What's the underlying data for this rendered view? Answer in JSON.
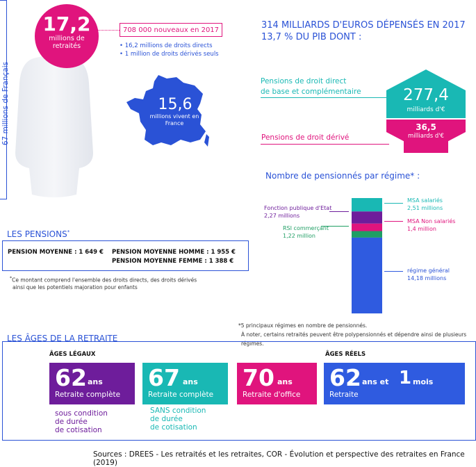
{
  "population": {
    "label": "67 millions de Français"
  },
  "retirees": {
    "number": "17,2",
    "label": "millions de retraités",
    "new_box": "708 000 nouveaux en 2017",
    "bullets": [
      "• 16,2 millions de droits directs",
      "• 1 million de droits dérivés seuls"
    ]
  },
  "france": {
    "number": "15,6",
    "label": "millions vivent en France"
  },
  "spending": {
    "title_line1": "314 MILLIARDS D'EUROS DÉPENSÉS EN 2017",
    "title_line2": "13,7 % DU PIB DONT :",
    "direct_label_line1": "Pensions de droit direct",
    "direct_label_line2": "de base et complémentaire",
    "direct_value": "277,4",
    "direct_unit": "milliards d'€",
    "derived_label": "Pensions de droit dérivé",
    "derived_value": "36,5",
    "derived_unit": "milliards d'€"
  },
  "regimes": {
    "title": "Nombre de pensionnés par régime* :",
    "items": [
      {
        "name": "MSA salariés",
        "value": "2,51 millions",
        "color": "#19b8b4"
      },
      {
        "name": "Fonction publique d'Etat",
        "value": "2,27 millions",
        "color": "#6e1d9b"
      },
      {
        "name": "MSA Non salariés",
        "value": "1,4 million",
        "color": "#e0147d"
      },
      {
        "name": "RSI commerçant",
        "value": "1,22 million",
        "color": "#1f9e64"
      },
      {
        "name": "régime général",
        "value": "14,18 millions",
        "color": "#2f5be0"
      }
    ],
    "stack_values": [
      2.51,
      2.27,
      1.4,
      1.22,
      14.18
    ],
    "note_line1": "*5 principaux régimes en nombre de pensionnés.",
    "note_line2": "À noter, certains retraités peuvent être polypensionnés et dépendre ainsi de plusieurs régimes."
  },
  "pensions": {
    "title": "LES PENSIONS",
    "title_mark": "*",
    "avg": "PENSION MOYENNE : 1 649 €",
    "avg_men": "PENSION MOYENNE HOMME : 1 955 €",
    "avg_women": "PENSION MOYENNE FEMME : 1 388 €",
    "note_mark": "*",
    "note_line1": "Ce montant comprend l'ensemble des droits directs, des droits dérivés",
    "note_line2": "ainsi que les potentiels majoration pour enfants"
  },
  "ages": {
    "title": "LES ÂGES DE LA RETRAITE",
    "legal_head": "ÂGES LÉGAUX",
    "real_head": "ÂGES RÉELS",
    "cards": [
      {
        "num": "62",
        "ans": "ans",
        "caption": "Retraite complète",
        "sub": [
          "sous condition",
          "de durée",
          "de cotisation"
        ],
        "color": "#6e1d9b"
      },
      {
        "num": "67",
        "ans": "ans",
        "caption": "Retraite complète",
        "sub": [
          "SANS condition",
          "de durée",
          "de cotisation"
        ],
        "color": "#19b8b4"
      },
      {
        "num": "70",
        "ans": "ans",
        "caption": "Retraite d'office",
        "sub": [],
        "color": "#e0147d"
      }
    ],
    "real_card": {
      "num": "62",
      "ans": "ans et",
      "num2": "1",
      "mois": "mois",
      "caption": "Retraite",
      "color": "#2f5be0"
    }
  },
  "sources": "Sources : DREES - Les retraités et les retraites, COR - Évolution et perspective des retraites en France (2019)"
}
